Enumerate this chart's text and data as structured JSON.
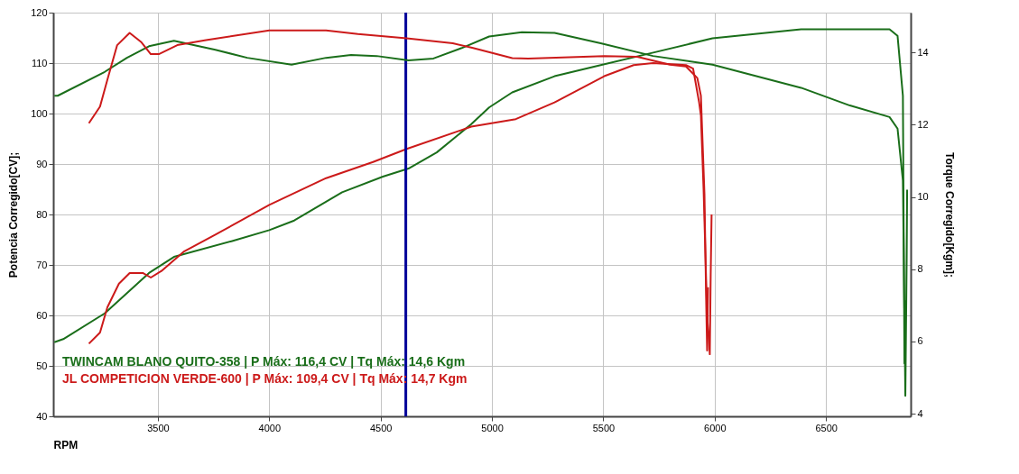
{
  "chart_data": {
    "type": "line",
    "xlabel": "RPM",
    "ylabel": "Potencia Corregido[CV];",
    "y2label": "Torque Corregido[Kgm];",
    "xlim": [
      3030,
      6880
    ],
    "xticks": [
      3500,
      4000,
      4500,
      5000,
      5500,
      6000,
      6500
    ],
    "ylim": [
      40,
      120
    ],
    "yticks": [
      40,
      50,
      60,
      70,
      80,
      90,
      100,
      110,
      120
    ],
    "y2lim": [
      3.93,
      15.1
    ],
    "y2ticks": [
      4,
      6,
      8,
      10,
      12,
      14
    ],
    "grid": true,
    "legend": "bottom left",
    "ref_lines": [
      {
        "axis": "x",
        "value": 4613,
        "color": "#000099"
      }
    ],
    "series": [
      {
        "name": "TWINCAM BLANO QUITO-358 | P Máx: 116,4 CV | Tq Máx: 14,6 Kgm",
        "color": "#1a6e1a",
        "x": [
          3035,
          3075,
          3261,
          3460,
          3572,
          3830,
          4000,
          4112,
          4327,
          4510,
          4625,
          4752,
          4907,
          4987,
          5091,
          5281,
          5488,
          5707,
          5990,
          6388,
          6785,
          6821,
          6845,
          6852,
          6858
        ],
        "values": [
          54.7,
          55.3,
          60.4,
          68.4,
          71.6,
          74.7,
          76.9,
          78.8,
          84.4,
          87.5,
          89.1,
          92.3,
          97.9,
          101.2,
          104.2,
          107.4,
          109.6,
          111.9,
          114.9,
          116.7,
          116.7,
          115.4,
          103.5,
          50.5,
          63
        ]
      },
      {
        "name": "JL COMPETICION VERDE-600 | P Máx: 109,4 CV | Tq Máx: 14,7 Kgm",
        "color": "#cc1a1a",
        "x": [
          3190,
          3240,
          3273,
          3325,
          3373,
          3432,
          3468,
          3516,
          3615,
          3758,
          4000,
          4255,
          4466,
          4617,
          4907,
          5107,
          5281,
          5504,
          5636,
          5723,
          5871,
          5903,
          5930,
          5938,
          5950,
          5966,
          5978,
          5982,
          5986
        ],
        "values": [
          54.4,
          56.6,
          61.6,
          66.3,
          68.4,
          68.4,
          67.5,
          68.8,
          72.6,
          76,
          81.9,
          87.2,
          90.4,
          93,
          97.4,
          98.9,
          102.2,
          107.4,
          109.6,
          110,
          109.6,
          108.9,
          102.2,
          99.6,
          85,
          60,
          52.3,
          68,
          80
        ]
      },
      {
        "axis": "y2",
        "color": "#1a6e1a",
        "x": [
          3035,
          3050,
          3261,
          3361,
          3460,
          3572,
          3758,
          3901,
          4100,
          4255,
          4367,
          4482,
          4625,
          4737,
          4864,
          4987,
          5134,
          5281,
          5488,
          5723,
          5990,
          6388,
          6607,
          6785,
          6821,
          6845,
          6856,
          6862,
          6864
        ],
        "values": [
          12.8,
          12.8,
          13.46,
          13.85,
          14.17,
          14.32,
          14.07,
          13.85,
          13.66,
          13.85,
          13.93,
          13.9,
          13.78,
          13.83,
          14.12,
          14.44,
          14.56,
          14.54,
          14.25,
          13.9,
          13.66,
          13.02,
          12.53,
          12.21,
          11.89,
          10.45,
          4.5,
          8.3,
          10.2
        ]
      },
      {
        "axis": "y2",
        "color": "#cc1a1a",
        "x": [
          3190,
          3240,
          3273,
          3317,
          3373,
          3424,
          3468,
          3504,
          3587,
          3716,
          4000,
          4255,
          4398,
          4617,
          4824,
          4915,
          5091,
          5163,
          5504,
          5652,
          5799,
          5871,
          5922,
          5938,
          5954,
          5962,
          5966,
          5970
        ],
        "values": [
          12.04,
          12.5,
          13.24,
          14.2,
          14.54,
          14.29,
          13.95,
          13.95,
          14.2,
          14.34,
          14.61,
          14.61,
          14.51,
          14.39,
          14.25,
          14.12,
          13.84,
          13.83,
          13.9,
          13.88,
          13.66,
          13.61,
          13.29,
          12.8,
          10.08,
          7,
          5.75,
          7.5
        ]
      }
    ]
  }
}
